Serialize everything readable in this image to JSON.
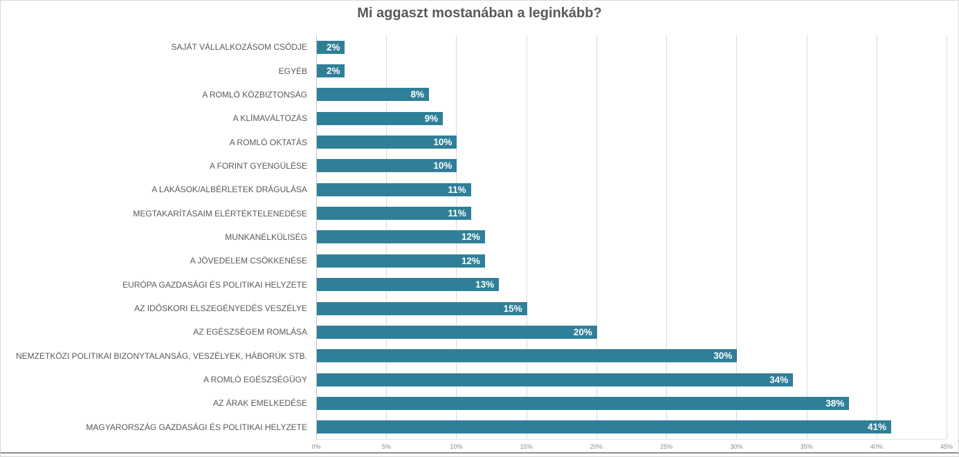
{
  "chart_data": {
    "type": "bar",
    "orientation": "horizontal",
    "title": "Mi aggaszt mostanában a leginkább?",
    "categories": [
      "SAJÁT VÁLLALKOZÁSOM CSŐDJE",
      "EGYÉB",
      "A ROMLÓ KÖZBIZTONSÁG",
      "A KLÍMAVÁLTOZÁS",
      "A ROMLÓ OKTATÁS",
      "A FORINT GYENGÜLÉSE",
      "A LAKÁSOK/ALBÉRLETEK DRÁGULÁSA",
      "MEGTAKARÍTÁSAIM ELÉRTÉKTELENEDÉSE",
      "MUNKANÉLKÜLISÉG",
      "A JÖVEDELEM CSÖKKENÉSE",
      "EURÓPA GAZDASÁGI ÉS POLITIKAI HELYZETE",
      "AZ IDŐSKORI ELSZEGÉNYEDÉS VESZÉLYE",
      "AZ EGÉSZSÉGEM ROMLÁSA",
      "NEMZETKÖZI POLITIKAI BIZONYTALANSÁG, VESZÉLYEK, HÁBORÚK STB.",
      "A ROMLÓ EGÉSZSÉGÜGY",
      "AZ ÁRAK EMELKEDÉSE",
      "MAGYARORSZÁG GAZDASÁGI ÉS POLITIKAI HELYZETE"
    ],
    "values": [
      2,
      2,
      8,
      9,
      10,
      10,
      11,
      11,
      12,
      12,
      13,
      15,
      20,
      30,
      34,
      38,
      41
    ],
    "value_labels": [
      "2%",
      "2%",
      "8%",
      "9%",
      "10%",
      "10%",
      "11%",
      "11%",
      "12%",
      "12%",
      "13%",
      "15%",
      "20%",
      "30%",
      "34%",
      "38%",
      "41%"
    ],
    "x_ticks": [
      "0%",
      "5%",
      "10%",
      "15%",
      "20%",
      "25%",
      "30%",
      "35%",
      "40%",
      "45%"
    ],
    "xlim": [
      0,
      45
    ],
    "grid": "vertical-gridlines-on",
    "legend": "none",
    "bar_color": "#2f7f98",
    "title_color": "#595959",
    "category_label_color": "#595959",
    "value_label_color": "#ffffff",
    "tick_label_color": "#8c8c8c"
  }
}
